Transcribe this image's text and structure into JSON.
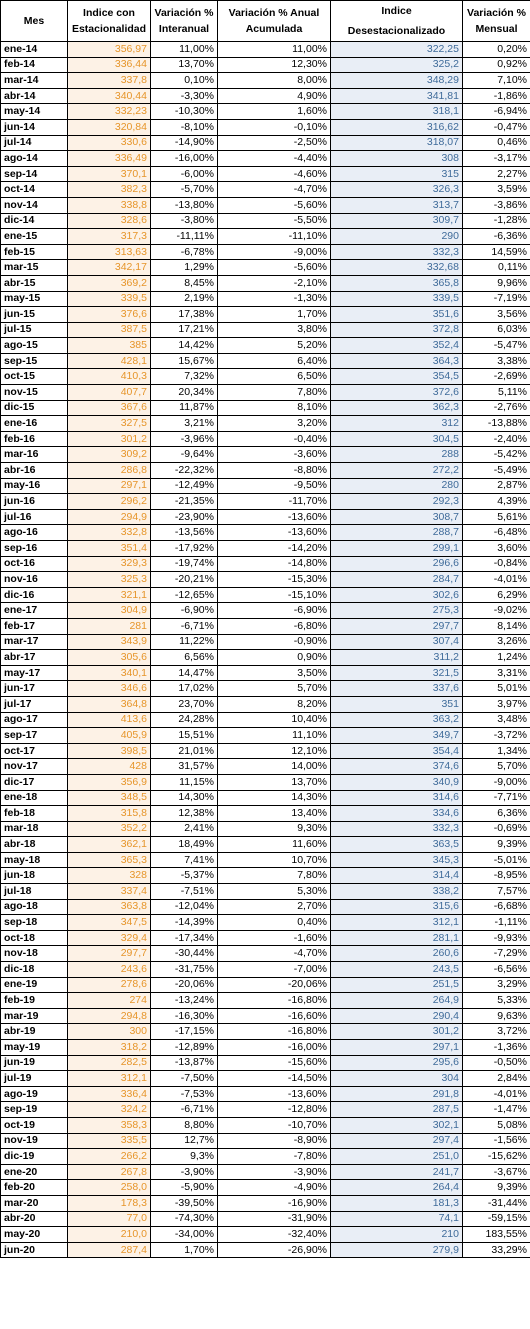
{
  "headers": {
    "mes": "Mes",
    "indice_line1": "Indice con",
    "indice_line2": "Estacionalidad",
    "var_inter_line1": "Variación %",
    "var_inter_line2": "Interanual",
    "var_anual_line1": "Variación % Anual",
    "var_anual_line2": "Acumulada",
    "desest_line1": "Indice",
    "desest_line2": "Desestacionalizado",
    "var_mens_line1": "Variación %",
    "var_mens_line2": "Mensual"
  },
  "rows": [
    [
      "ene-14",
      "356,97",
      "11,00%",
      "11,00%",
      "322,25",
      "0,20%"
    ],
    [
      "feb-14",
      "336,44",
      "13,70%",
      "12,30%",
      "325,2",
      "0,92%"
    ],
    [
      "mar-14",
      "337,8",
      "0,10%",
      "8,00%",
      "348,29",
      "7,10%"
    ],
    [
      "abr-14",
      "340,44",
      "-3,30%",
      "4,90%",
      "341,81",
      "-1,86%"
    ],
    [
      "may-14",
      "332,23",
      "-10,30%",
      "1,60%",
      "318,1",
      "-6,94%"
    ],
    [
      "jun-14",
      "320,84",
      "-8,10%",
      "-0,10%",
      "316,62",
      "-0,47%"
    ],
    [
      "jul-14",
      "330,6",
      "-14,90%",
      "-2,50%",
      "318,07",
      "0,46%"
    ],
    [
      "ago-14",
      "336,49",
      "-16,00%",
      "-4,40%",
      "308",
      "-3,17%"
    ],
    [
      "sep-14",
      "370,1",
      "-6,00%",
      "-4,60%",
      "315",
      "2,27%"
    ],
    [
      "oct-14",
      "382,3",
      "-5,70%",
      "-4,70%",
      "326,3",
      "3,59%"
    ],
    [
      "nov-14",
      "338,8",
      "-13,80%",
      "-5,60%",
      "313,7",
      "-3,86%"
    ],
    [
      "dic-14",
      "328,6",
      "-3,80%",
      "-5,50%",
      "309,7",
      "-1,28%"
    ],
    [
      "ene-15",
      "317,3",
      "-11,11%",
      "-11,10%",
      "290",
      "-6,36%"
    ],
    [
      "feb-15",
      "313,63",
      "-6,78%",
      "-9,00%",
      "332,3",
      "14,59%"
    ],
    [
      "mar-15",
      "342,17",
      "1,29%",
      "-5,60%",
      "332,68",
      "0,11%"
    ],
    [
      "abr-15",
      "369,2",
      "8,45%",
      "-2,10%",
      "365,8",
      "9,96%"
    ],
    [
      "may-15",
      "339,5",
      "2,19%",
      "-1,30%",
      "339,5",
      "-7,19%"
    ],
    [
      "jun-15",
      "376,6",
      "17,38%",
      "1,70%",
      "351,6",
      "3,56%"
    ],
    [
      "jul-15",
      "387,5",
      "17,21%",
      "3,80%",
      "372,8",
      "6,03%"
    ],
    [
      "ago-15",
      "385",
      "14,42%",
      "5,20%",
      "352,4",
      "-5,47%"
    ],
    [
      "sep-15",
      "428,1",
      "15,67%",
      "6,40%",
      "364,3",
      "3,38%"
    ],
    [
      "oct-15",
      "410,3",
      "7,32%",
      "6,50%",
      "354,5",
      "-2,69%"
    ],
    [
      "nov-15",
      "407,7",
      "20,34%",
      "7,80%",
      "372,6",
      "5,11%"
    ],
    [
      "dic-15",
      "367,6",
      "11,87%",
      "8,10%",
      "362,3",
      "-2,76%"
    ],
    [
      "ene-16",
      "327,5",
      "3,21%",
      "3,20%",
      "312",
      "-13,88%"
    ],
    [
      "feb-16",
      "301,2",
      "-3,96%",
      "-0,40%",
      "304,5",
      "-2,40%"
    ],
    [
      "mar-16",
      "309,2",
      "-9,64%",
      "-3,60%",
      "288",
      "-5,42%"
    ],
    [
      "abr-16",
      "286,8",
      "-22,32%",
      "-8,80%",
      "272,2",
      "-5,49%"
    ],
    [
      "may-16",
      "297,1",
      "-12,49%",
      "-9,50%",
      "280",
      "2,87%"
    ],
    [
      "jun-16",
      "296,2",
      "-21,35%",
      "-11,70%",
      "292,3",
      "4,39%"
    ],
    [
      "jul-16",
      "294,9",
      "-23,90%",
      "-13,60%",
      "308,7",
      "5,61%"
    ],
    [
      "ago-16",
      "332,8",
      "-13,56%",
      "-13,60%",
      "288,7",
      "-6,48%"
    ],
    [
      "sep-16",
      "351,4",
      "-17,92%",
      "-14,20%",
      "299,1",
      "3,60%"
    ],
    [
      "oct-16",
      "329,3",
      "-19,74%",
      "-14,80%",
      "296,6",
      "-0,84%"
    ],
    [
      "nov-16",
      "325,3",
      "-20,21%",
      "-15,30%",
      "284,7",
      "-4,01%"
    ],
    [
      "dic-16",
      "321,1",
      "-12,65%",
      "-15,10%",
      "302,6",
      "6,29%"
    ],
    [
      "ene-17",
      "304,9",
      "-6,90%",
      "-6,90%",
      "275,3",
      "-9,02%"
    ],
    [
      "feb-17",
      "281",
      "-6,71%",
      "-6,80%",
      "297,7",
      "8,14%"
    ],
    [
      "mar-17",
      "343,9",
      "11,22%",
      "-0,90%",
      "307,4",
      "3,26%"
    ],
    [
      "abr-17",
      "305,6",
      "6,56%",
      "0,90%",
      "311,2",
      "1,24%"
    ],
    [
      "may-17",
      "340,1",
      "14,47%",
      "3,50%",
      "321,5",
      "3,31%"
    ],
    [
      "jun-17",
      "346,6",
      "17,02%",
      "5,70%",
      "337,6",
      "5,01%"
    ],
    [
      "jul-17",
      "364,8",
      "23,70%",
      "8,20%",
      "351",
      "3,97%"
    ],
    [
      "ago-17",
      "413,6",
      "24,28%",
      "10,40%",
      "363,2",
      "3,48%"
    ],
    [
      "sep-17",
      "405,9",
      "15,51%",
      "11,10%",
      "349,7",
      "-3,72%"
    ],
    [
      "oct-17",
      "398,5",
      "21,01%",
      "12,10%",
      "354,4",
      "1,34%"
    ],
    [
      "nov-17",
      "428",
      "31,57%",
      "14,00%",
      "374,6",
      "5,70%"
    ],
    [
      "dic-17",
      "356,9",
      "11,15%",
      "13,70%",
      "340,9",
      "-9,00%"
    ],
    [
      "ene-18",
      "348,5",
      "14,30%",
      "14,30%",
      "314,6",
      "-7,71%"
    ],
    [
      "feb-18",
      "315,8",
      "12,38%",
      "13,40%",
      "334,6",
      "6,36%"
    ],
    [
      "mar-18",
      "352,2",
      "2,41%",
      "9,30%",
      "332,3",
      "-0,69%"
    ],
    [
      "abr-18",
      "362,1",
      "18,49%",
      "11,60%",
      "363,5",
      "9,39%"
    ],
    [
      "may-18",
      "365,3",
      "7,41%",
      "10,70%",
      "345,3",
      "-5,01%"
    ],
    [
      "jun-18",
      "328",
      "-5,37%",
      "7,80%",
      "314,4",
      "-8,95%"
    ],
    [
      "jul-18",
      "337,4",
      "-7,51%",
      "5,30%",
      "338,2",
      "7,57%"
    ],
    [
      "ago-18",
      "363,8",
      "-12,04%",
      "2,70%",
      "315,6",
      "-6,68%"
    ],
    [
      "sep-18",
      "347,5",
      "-14,39%",
      "0,40%",
      "312,1",
      "-1,11%"
    ],
    [
      "oct-18",
      "329,4",
      "-17,34%",
      "-1,60%",
      "281,1",
      "-9,93%"
    ],
    [
      "nov-18",
      "297,7",
      "-30,44%",
      "-4,70%",
      "260,6",
      "-7,29%"
    ],
    [
      "dic-18",
      "243,6",
      "-31,75%",
      "-7,00%",
      "243,5",
      "-6,56%"
    ],
    [
      "ene-19",
      "278,6",
      "-20,06%",
      "-20,06%",
      "251,5",
      "3,29%"
    ],
    [
      "feb-19",
      "274",
      "-13,24%",
      "-16,80%",
      "264,9",
      "5,33%"
    ],
    [
      "mar-19",
      "294,8",
      "-16,30%",
      "-16,60%",
      "290,4",
      "9,63%"
    ],
    [
      "abr-19",
      "300",
      "-17,15%",
      "-16,80%",
      "301,2",
      "3,72%"
    ],
    [
      "may-19",
      "318,2",
      "-12,89%",
      "-16,00%",
      "297,1",
      "-1,36%"
    ],
    [
      "jun-19",
      "282,5",
      "-13,87%",
      "-15,60%",
      "295,6",
      "-0,50%"
    ],
    [
      "jul-19",
      "312,1",
      "-7,50%",
      "-14,50%",
      "304",
      "2,84%"
    ],
    [
      "ago-19",
      "336,4",
      "-7,53%",
      "-13,60%",
      "291,8",
      "-4,01%"
    ],
    [
      "sep-19",
      "324,2",
      "-6,71%",
      "-12,80%",
      "287,5",
      "-1,47%"
    ],
    [
      "oct-19",
      "358,3",
      "8,80%",
      "-10,70%",
      "302,1",
      "5,08%"
    ],
    [
      "nov-19",
      "335,5",
      "12,7%",
      "-8,90%",
      "297,4",
      "-1,56%"
    ],
    [
      "dic-19",
      "266,2",
      "9,3%",
      "-7,80%",
      "251,0",
      "-15,62%"
    ],
    [
      "ene-20",
      "267,8",
      "-3,90%",
      "-3,90%",
      "241,7",
      "-3,67%"
    ],
    [
      "feb-20",
      "258,0",
      "-5,90%",
      "-4,90%",
      "264,4",
      "9,39%"
    ],
    [
      "mar-20",
      "178,3",
      "-39,50%",
      "-16,90%",
      "181,3",
      "-31,44%"
    ],
    [
      "abr-20",
      "77,0",
      "-74,30%",
      "-31,90%",
      "74,1",
      "-59,15%"
    ],
    [
      "may-20",
      "210,0",
      "-34,00%",
      "-32,40%",
      "210",
      "183,55%"
    ],
    [
      "jun-20",
      "287,4",
      "1,70%",
      "-26,90%",
      "279,9",
      "33,29%"
    ]
  ]
}
